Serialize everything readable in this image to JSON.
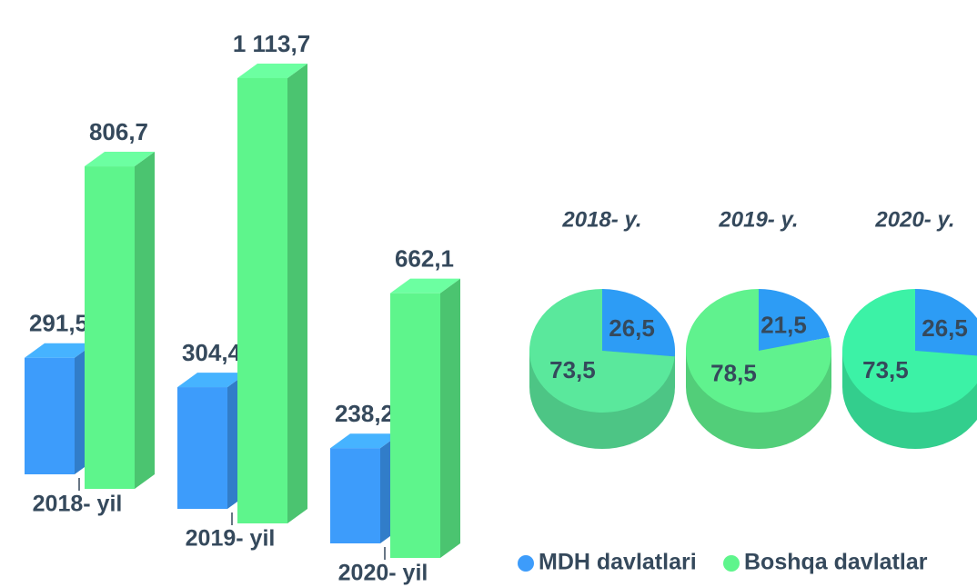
{
  "chart_data": [
    {
      "type": "bar3d",
      "categories": [
        "2018- yil",
        "2019- yil",
        "2020- yil"
      ],
      "series": [
        {
          "name": "MDH davlatlari",
          "color": "#3d9cfb",
          "values": [
            291.5,
            304.4,
            238.2
          ],
          "value_labels": [
            "291,5",
            "304,4",
            "238,2"
          ]
        },
        {
          "name": "Boshqa davlatlar",
          "color": "#5ef58c",
          "values": [
            806.7,
            1113.7,
            662.1
          ],
          "value_labels": [
            "806,7",
            "1 113,7",
            "662,1"
          ]
        }
      ],
      "legend": "bottom-right"
    },
    {
      "type": "pie3d",
      "title": "2018- y.",
      "values": [
        26.5,
        73.5
      ],
      "value_labels": [
        "26,5",
        "73,5"
      ],
      "colors": [
        "#2d9cf5",
        "#5ae89c"
      ]
    },
    {
      "type": "pie3d",
      "title": "2019- y.",
      "values": [
        21.5,
        78.5
      ],
      "value_labels": [
        "21,5",
        "78,5"
      ],
      "colors": [
        "#2d9cf5",
        "#60f28e"
      ]
    },
    {
      "type": "pie3d",
      "title": "2020- y.",
      "values": [
        26.5,
        73.5
      ],
      "value_labels": [
        "26,5",
        "73,5"
      ],
      "colors": [
        "#2d9cf5",
        "#3cf2a6"
      ]
    }
  ]
}
